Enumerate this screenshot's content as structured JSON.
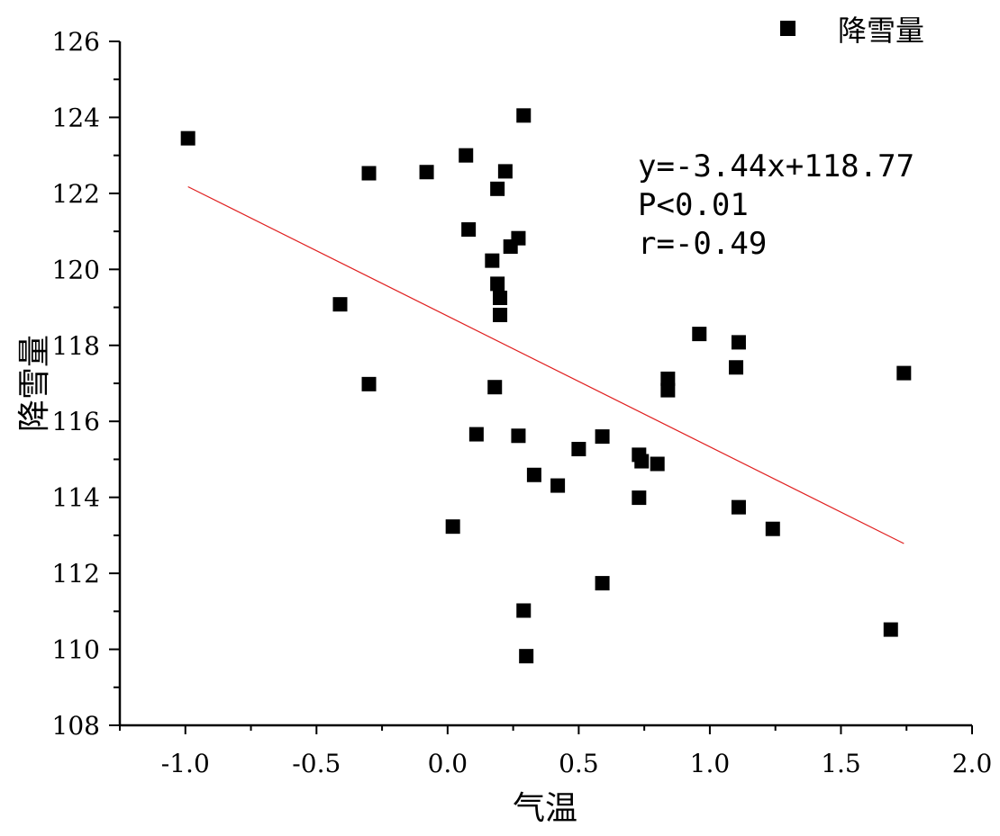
{
  "chart_data": {
    "type": "scatter",
    "xlabel": "气温",
    "ylabel": "降雪量",
    "xlim": [
      -1.25,
      2.0
    ],
    "ylim": [
      108,
      126
    ],
    "x_ticks": [
      -1.0,
      -0.5,
      0.0,
      0.5,
      1.0,
      1.5,
      2.0
    ],
    "x_tick_labels": [
      "-1.0",
      "-0.5",
      "0.0",
      "0.5",
      "1.0",
      "1.5",
      "2.0"
    ],
    "y_ticks": [
      108,
      110,
      112,
      114,
      116,
      118,
      120,
      122,
      124,
      126
    ],
    "y_tick_labels": [
      "108",
      "110",
      "112",
      "114",
      "116",
      "118",
      "120",
      "122",
      "124",
      "126"
    ],
    "legend": {
      "position": "top-right",
      "entries": [
        "降雪量"
      ]
    },
    "series": [
      {
        "name": "降雪量",
        "marker": "square",
        "color": "#000000",
        "points": [
          [
            -0.99,
            123.45
          ],
          [
            -0.3,
            122.53
          ],
          [
            -0.08,
            122.56
          ],
          [
            0.07,
            123.0
          ],
          [
            0.22,
            122.58
          ],
          [
            0.19,
            122.12
          ],
          [
            0.29,
            124.05
          ],
          [
            0.08,
            121.05
          ],
          [
            0.27,
            120.82
          ],
          [
            0.24,
            120.6
          ],
          [
            0.17,
            120.23
          ],
          [
            0.19,
            119.62
          ],
          [
            0.2,
            119.25
          ],
          [
            0.2,
            118.8
          ],
          [
            -0.41,
            119.08
          ],
          [
            -0.3,
            116.98
          ],
          [
            0.18,
            116.9
          ],
          [
            0.11,
            115.66
          ],
          [
            0.27,
            115.62
          ],
          [
            0.59,
            115.6
          ],
          [
            0.5,
            115.27
          ],
          [
            0.33,
            114.59
          ],
          [
            0.42,
            114.31
          ],
          [
            0.02,
            113.23
          ],
          [
            0.73,
            115.12
          ],
          [
            0.74,
            114.95
          ],
          [
            0.8,
            114.88
          ],
          [
            0.73,
            113.99
          ],
          [
            0.96,
            118.3
          ],
          [
            1.11,
            118.08
          ],
          [
            1.1,
            117.42
          ],
          [
            0.84,
            117.12
          ],
          [
            0.84,
            116.82
          ],
          [
            1.74,
            117.27
          ],
          [
            1.11,
            113.74
          ],
          [
            1.24,
            113.17
          ],
          [
            0.59,
            111.74
          ],
          [
            0.29,
            111.02
          ],
          [
            0.3,
            109.82
          ],
          [
            1.69,
            110.52
          ]
        ]
      }
    ],
    "fit_line": {
      "slope": -3.44,
      "intercept": 118.77,
      "x_range": [
        -0.99,
        1.74
      ],
      "color": "#e02020"
    },
    "annotations": [
      "y=-3.44x+118.77",
      "P<0.01",
      "r=-0.49"
    ]
  }
}
